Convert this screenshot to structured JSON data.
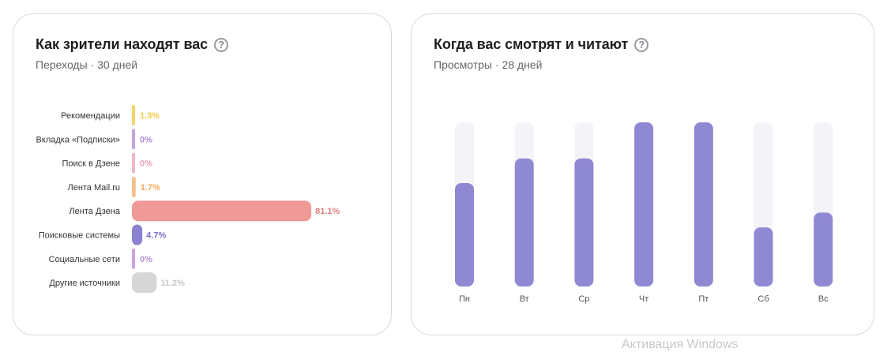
{
  "left_card": {
    "title": "Как зрители находят вас",
    "subtitle": "Переходы · 30 дней",
    "help_icon": "question-circle-icon"
  },
  "right_card": {
    "title": "Когда вас смотрят и читают",
    "subtitle": "Просмотры · 28 дней",
    "help_icon": "question-circle-icon"
  },
  "watermark": "Активация Windows",
  "chart_data": [
    {
      "type": "bar",
      "orientation": "horizontal",
      "categories": [
        "Рекомендации",
        "Вкладка «Подписки»",
        "Поиск в Дзене",
        "Лента Mail.ru",
        "Лента Дзена",
        "Поисковые системы",
        "Социальные сети",
        "Другие источники"
      ],
      "values": [
        1.3,
        0,
        0,
        1.7,
        81.1,
        4.7,
        0,
        11.2
      ],
      "labels": [
        "1.3%",
        "0%",
        "0%",
        "1.7%",
        "81.1%",
        "4.7%",
        "0%",
        "11.2%"
      ],
      "colors": [
        "#f7d46b",
        "#c3a6e0",
        "#f2b8c6",
        "#f5c089",
        "#ef9a96",
        "#8b82d0",
        "#c9a3de",
        "#d6d6d6"
      ],
      "label_colors": [
        "#f2c94c",
        "#b18bd8",
        "#eea2b6",
        "#f0a95e",
        "#e07f7a",
        "#7a70c8",
        "#b895d6",
        "#c8c8c8"
      ],
      "xlim": [
        0,
        100
      ]
    },
    {
      "type": "bar",
      "orientation": "vertical",
      "categories": [
        "Пн",
        "Вт",
        "Ср",
        "Чт",
        "Пт",
        "Сб",
        "Вс"
      ],
      "values": [
        63,
        78,
        78,
        100,
        100,
        36,
        45
      ],
      "ylim": [
        0,
        100
      ],
      "bar_color": "#8f88d2",
      "track_color": "#f4f3f8",
      "label_color": "#555555"
    }
  ]
}
